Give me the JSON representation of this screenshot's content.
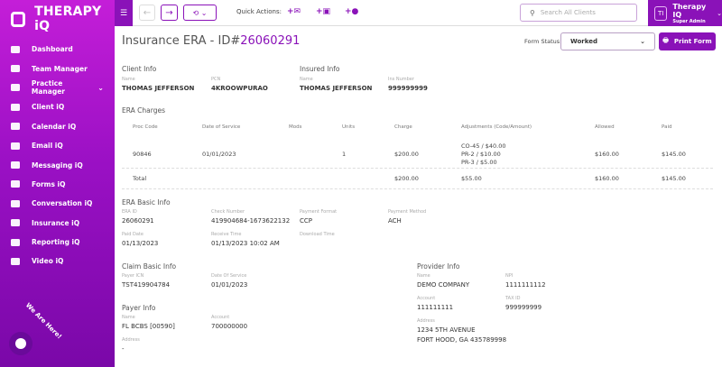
{
  "app": {
    "name": "THERAPY iQ"
  },
  "sidebar": {
    "items": [
      {
        "label": "Dashboard",
        "icon": "dashboard-icon"
      },
      {
        "label": "Team Manager",
        "icon": "team-icon"
      },
      {
        "label": "Practice Manager",
        "icon": "practice-icon",
        "chevron": "⌄"
      },
      {
        "label": "Client iQ",
        "icon": "clients-icon"
      },
      {
        "label": "Calendar iQ",
        "icon": "calendar-icon"
      },
      {
        "label": "Email iQ",
        "icon": "email-icon"
      },
      {
        "label": "Messaging iQ",
        "icon": "messaging-icon"
      },
      {
        "label": "Forms iQ",
        "icon": "forms-icon"
      },
      {
        "label": "Conversation iQ",
        "icon": "conversation-icon"
      },
      {
        "label": "Insurance iQ",
        "icon": "insurance-icon"
      },
      {
        "label": "Reporting iQ",
        "icon": "reporting-icon"
      },
      {
        "label": "Video iQ",
        "icon": "video-icon"
      }
    ],
    "chat_label": "We Are Here!"
  },
  "topbar": {
    "quick_actions": "Quick Actions:",
    "search_placeholder": "Search All Clients",
    "user": {
      "initials": "TI",
      "name": "Therapy IQ",
      "role": "Super Admin"
    }
  },
  "page": {
    "title_prefix": "Insurance ERA - ID#",
    "title_id": "26060291",
    "form_status_label": "Form Status:",
    "form_status": "Worked",
    "print_label": "Print Form"
  },
  "client_info": {
    "title": "Client Info",
    "name_label": "Name",
    "name": "THOMAS JEFFERSON",
    "pcn_label": "PCN",
    "pcn": "4KROOWPURAO"
  },
  "insured_info": {
    "title": "Insured Info",
    "name_label": "Name",
    "name": "THOMAS JEFFERSON",
    "ins_label": "Ins Number",
    "ins": "999999999"
  },
  "charges": {
    "title": "ERA Charges",
    "headers": [
      "Proc Code",
      "Date of Service",
      "Mods",
      "Units",
      "Charge",
      "Adjustments (Code/Amount)",
      "Allowed",
      "Paid"
    ],
    "row": {
      "proc": "90846",
      "dos": "01/01/2023",
      "mods": "",
      "units": "1",
      "charge": "$200.00",
      "adjustments": [
        "CO-45 / $40.00",
        "PR-2 / $10.00",
        "PR-3 / $5.00"
      ],
      "allowed": "$160.00",
      "paid": "$145.00"
    },
    "total": {
      "label": "Total",
      "charge": "$200.00",
      "adjustments": "$55.00",
      "allowed": "$160.00",
      "paid": "$145.00"
    }
  },
  "era_basic": {
    "title": "ERA Basic Info",
    "fields": [
      {
        "label": "ERA ID",
        "value": "26060291"
      },
      {
        "label": "Check Number",
        "value": "419904684-1673622132"
      },
      {
        "label": "Payment Format",
        "value": "CCP"
      },
      {
        "label": "Payment Method",
        "value": "ACH"
      },
      {
        "label": "Paid Date",
        "value": "01/13/2023"
      },
      {
        "label": "Receive Time",
        "value": "01/13/2023 10:02 AM"
      },
      {
        "label": "Download Time",
        "value": ""
      }
    ]
  },
  "claim_basic": {
    "title": "Claim Basic Info",
    "fields": [
      {
        "label": "Payer ICN",
        "value": "TST419904784"
      },
      {
        "label": "Date Of Service",
        "value": "01/01/2023"
      }
    ]
  },
  "payer_info": {
    "title": "Payer Info",
    "fields": [
      {
        "label": "Name",
        "value": "FL BCBS [00590]"
      },
      {
        "label": "Account",
        "value": "700000000"
      },
      {
        "label": "Address",
        "value": "-"
      }
    ]
  },
  "provider_info": {
    "title": "Provider Info",
    "fields": [
      {
        "label": "Name",
        "value": "DEMO COMPANY"
      },
      {
        "label": "NPI",
        "value": "1111111112"
      },
      {
        "label": "Account",
        "value": "111111111"
      },
      {
        "label": "TAX ID",
        "value": "999999999"
      },
      {
        "label": "Address",
        "value": "1234 5TH AVENUE"
      }
    ],
    "address_line2": "FORT HOOD, GA 435789998"
  },
  "colors": {
    "brand": "#8a12b8",
    "sidebar_top": "#c41ed8",
    "sidebar_bottom": "#7a08a8"
  }
}
